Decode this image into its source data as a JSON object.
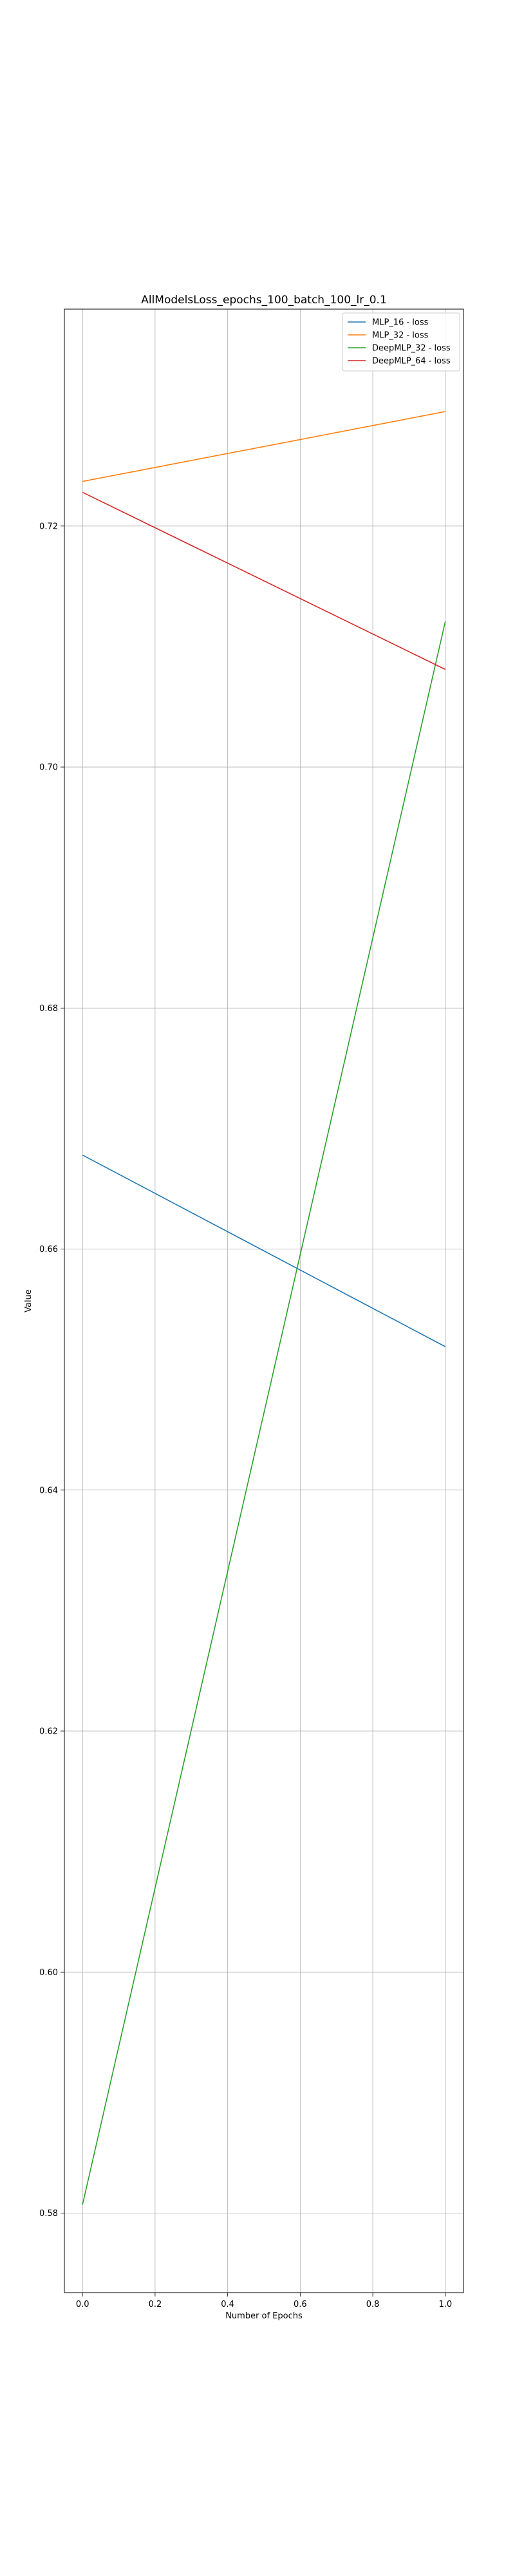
{
  "chart_data": {
    "type": "line",
    "title": "AllModelsLoss_epochs_100_batch_100_lr_0.1",
    "xlabel": "Number of Epochs",
    "ylabel": "Value",
    "x": [
      0.0,
      1.0
    ],
    "xlim": [
      -0.05,
      1.05
    ],
    "ylim": [
      0.5734,
      0.738
    ],
    "xticks": [
      0.0,
      0.2,
      0.4,
      0.6,
      0.8,
      1.0
    ],
    "xtick_labels": [
      "0.0",
      "0.2",
      "0.4",
      "0.6",
      "0.8",
      "1.0"
    ],
    "yticks": [
      0.58,
      0.6,
      0.62,
      0.64,
      0.66,
      0.68,
      0.7,
      0.72
    ],
    "ytick_labels": [
      "0.58",
      "0.60",
      "0.62",
      "0.64",
      "0.66",
      "0.68",
      "0.70",
      "0.72"
    ],
    "grid": true,
    "legend_position": "top-right",
    "series": [
      {
        "name": "MLP_16 - loss",
        "color": "#1f77b4",
        "values": [
          0.6678,
          0.6519
        ]
      },
      {
        "name": "MLP_32 - loss",
        "color": "#ff7f0e",
        "values": [
          0.7237,
          0.7295
        ]
      },
      {
        "name": "DeepMLP_32 - loss",
        "color": "#2ca02c",
        "values": [
          0.5807,
          0.7121
        ]
      },
      {
        "name": "DeepMLP_64 - loss",
        "color": "#d62728",
        "values": [
          0.7228,
          0.7081
        ]
      }
    ]
  }
}
